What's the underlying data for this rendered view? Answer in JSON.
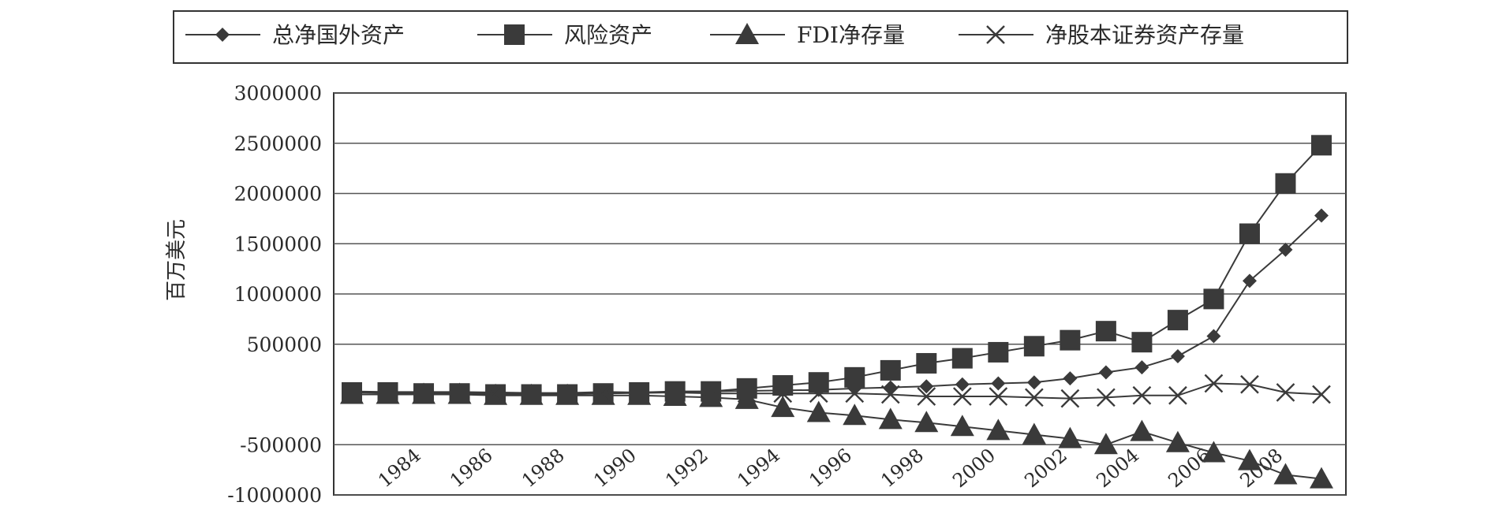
{
  "chart_data": {
    "type": "line",
    "title": "",
    "xlabel": "",
    "ylabel": "百万美元",
    "x": [
      1983,
      1984,
      1985,
      1986,
      1987,
      1988,
      1989,
      1990,
      1991,
      1992,
      1993,
      1994,
      1995,
      1996,
      1997,
      1998,
      1999,
      2000,
      2001,
      2002,
      2003,
      2004,
      2005,
      2006,
      2007,
      2008,
      2009,
      2010
    ],
    "xticks": [
      "1984",
      "1986",
      "1988",
      "1990",
      "1992",
      "1994",
      "1996",
      "1998",
      "2000",
      "2002",
      "2004",
      "2006",
      "2008"
    ],
    "xtick_values": [
      1984,
      1986,
      1988,
      1990,
      1992,
      1994,
      1996,
      1998,
      2000,
      2002,
      2004,
      2006,
      2008
    ],
    "yticks": [
      {
        "value": 3000000,
        "label": "3000000"
      },
      {
        "value": 2500000,
        "label": "2500000"
      },
      {
        "value": 2000000,
        "label": "2000000"
      },
      {
        "value": 1500000,
        "label": "1500000"
      },
      {
        "value": 1000000,
        "label": "1000000"
      },
      {
        "value": 500000,
        "label": "500000"
      },
      {
        "value": -500000,
        "label": "-500000"
      },
      {
        "value": -1000000,
        "label": "-1000000"
      }
    ],
    "ylim": [
      -1000000,
      3000000
    ],
    "grid": true,
    "legend_position": "top",
    "series": [
      {
        "name": "总净国外资产",
        "marker": "diamond",
        "values": [
          30000,
          25000,
          25000,
          25000,
          20000,
          15000,
          15000,
          25000,
          20000,
          25000,
          30000,
          35000,
          40000,
          45000,
          60000,
          70000,
          80000,
          100000,
          110000,
          120000,
          160000,
          220000,
          270000,
          380000,
          580000,
          1130000,
          1440000,
          1780000
        ]
      },
      {
        "name": "风险资产",
        "marker": "square",
        "values": [
          20000,
          20000,
          10000,
          10000,
          0,
          0,
          0,
          10000,
          20000,
          30000,
          30000,
          60000,
          90000,
          120000,
          170000,
          240000,
          310000,
          360000,
          420000,
          480000,
          540000,
          630000,
          520000,
          740000,
          950000,
          1600000,
          2100000,
          2480000
        ]
      },
      {
        "name": "FDI净存量",
        "marker": "triangle",
        "values": [
          0,
          0,
          0,
          0,
          -10000,
          -10000,
          -10000,
          -10000,
          -10000,
          -20000,
          -30000,
          -50000,
          -130000,
          -180000,
          -210000,
          -250000,
          -280000,
          -320000,
          -360000,
          -400000,
          -440000,
          -500000,
          -370000,
          -480000,
          -580000,
          -660000,
          -800000,
          -840000
        ]
      },
      {
        "name": "净股本证券资产存量",
        "marker": "cross",
        "values": [
          20000,
          15000,
          15000,
          10000,
          10000,
          5000,
          5000,
          10000,
          15000,
          20000,
          10000,
          10000,
          10000,
          10000,
          10000,
          0,
          -20000,
          -20000,
          -20000,
          -30000,
          -40000,
          -30000,
          -10000,
          -10000,
          110000,
          100000,
          20000,
          0
        ]
      }
    ]
  }
}
